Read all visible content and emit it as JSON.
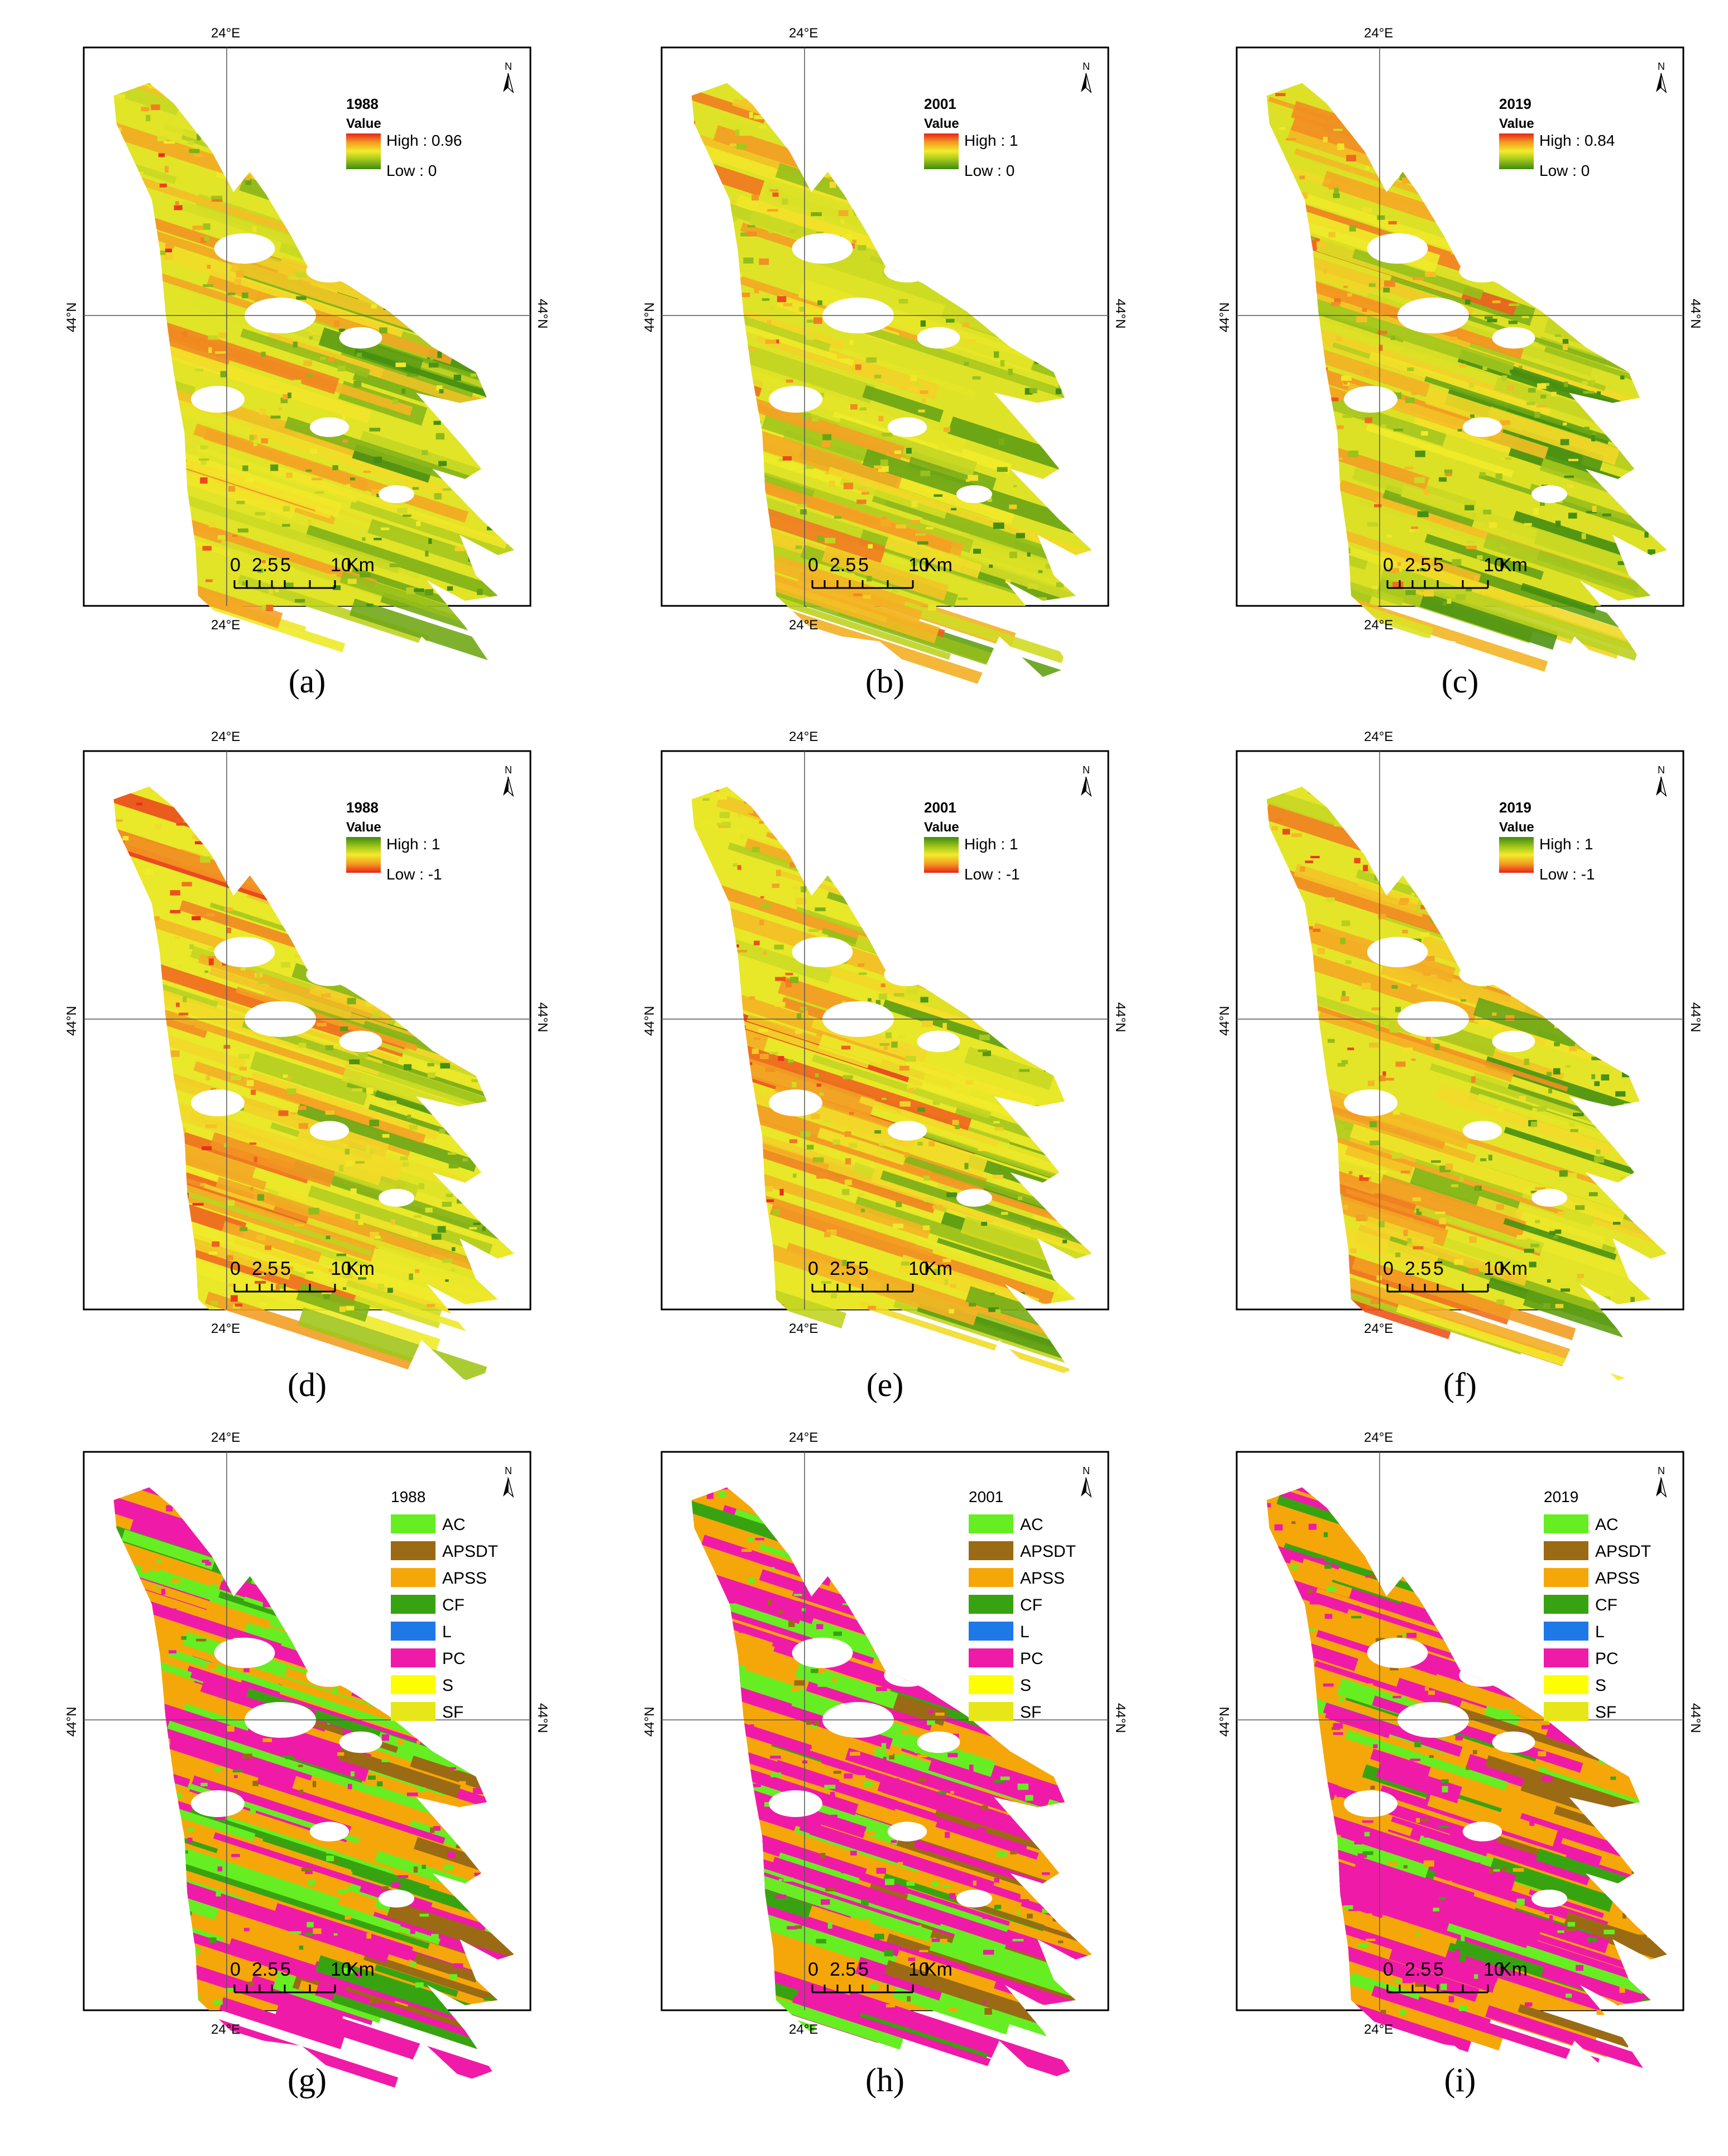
{
  "coordinates": {
    "lon": "24°E",
    "lat": "44°N"
  },
  "scale_bar": {
    "ticks": [
      "0",
      "2.5",
      "5",
      "10"
    ],
    "unit": "Km"
  },
  "north_arrow": "N",
  "vegetation_index_maps": [
    {
      "id": "a",
      "caption": "(a)",
      "year": "1988",
      "legend_title": "Value",
      "high": "High : 0.96",
      "low": "Low : 0",
      "ramp": "red-to-green"
    },
    {
      "id": "b",
      "caption": "(b)",
      "year": "2001",
      "legend_title": "Value",
      "high": "High : 1",
      "low": "Low : 0",
      "ramp": "red-to-green"
    },
    {
      "id": "c",
      "caption": "(c)",
      "year": "2019",
      "legend_title": "Value",
      "high": "High : 0.84",
      "low": "Low : 0",
      "ramp": "red-to-green"
    },
    {
      "id": "d",
      "caption": "(d)",
      "year": "1988",
      "legend_title": "Value",
      "high": "High : 1",
      "low": "Low : -1",
      "ramp": "green-to-red"
    },
    {
      "id": "e",
      "caption": "(e)",
      "year": "2001",
      "legend_title": "Value",
      "high": "High : 1",
      "low": "Low : -1",
      "ramp": "green-to-red"
    },
    {
      "id": "f",
      "caption": "(f)",
      "year": "2019",
      "legend_title": "Value",
      "high": "High : 1",
      "low": "Low : -1",
      "ramp": "green-to-red"
    }
  ],
  "classification_maps": [
    {
      "id": "g",
      "caption": "(g)",
      "year": "1988"
    },
    {
      "id": "h",
      "caption": "(h)",
      "year": "2001"
    },
    {
      "id": "i",
      "caption": "(i)",
      "year": "2019"
    }
  ],
  "land_classes": [
    {
      "code": "AC",
      "color": "#66ee22"
    },
    {
      "code": "APSDT",
      "color": "#9a6b14"
    },
    {
      "code": "APSS",
      "color": "#f5a70a"
    },
    {
      "code": "CF",
      "color": "#38a310"
    },
    {
      "code": "L",
      "color": "#1f78e8"
    },
    {
      "code": "PC",
      "color": "#f01aa8"
    },
    {
      "code": "S",
      "color": "#ffff00"
    },
    {
      "code": "SF",
      "color": "#e6e619"
    }
  ],
  "colors": {
    "ramp_red": "#e8241a",
    "ramp_orange": "#f39c23",
    "ramp_yellow": "#f2ec2a",
    "ramp_green": "#3d8a10"
  }
}
